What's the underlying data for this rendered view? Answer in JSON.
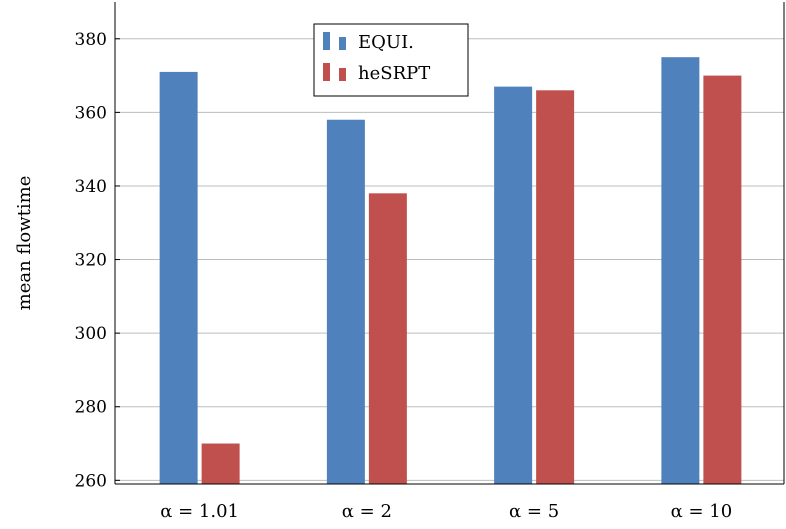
{
  "chart_data": {
    "type": "bar",
    "categories": [
      "α = 1.01",
      "α = 2",
      "α = 5",
      "α = 10"
    ],
    "series": [
      {
        "name": "EQUI.",
        "values": [
          371,
          358,
          367,
          375
        ],
        "color": "#4f81bd"
      },
      {
        "name": "heSRPT",
        "values": [
          270,
          338,
          366,
          370
        ],
        "color": "#c0504d"
      }
    ],
    "ylabel": "mean flowtime",
    "xlabel": "",
    "ylim": [
      259,
      390
    ],
    "yticks": [
      260,
      280,
      300,
      320,
      340,
      360,
      380
    ],
    "grid": "horizontal",
    "legend_position": "top-center"
  }
}
